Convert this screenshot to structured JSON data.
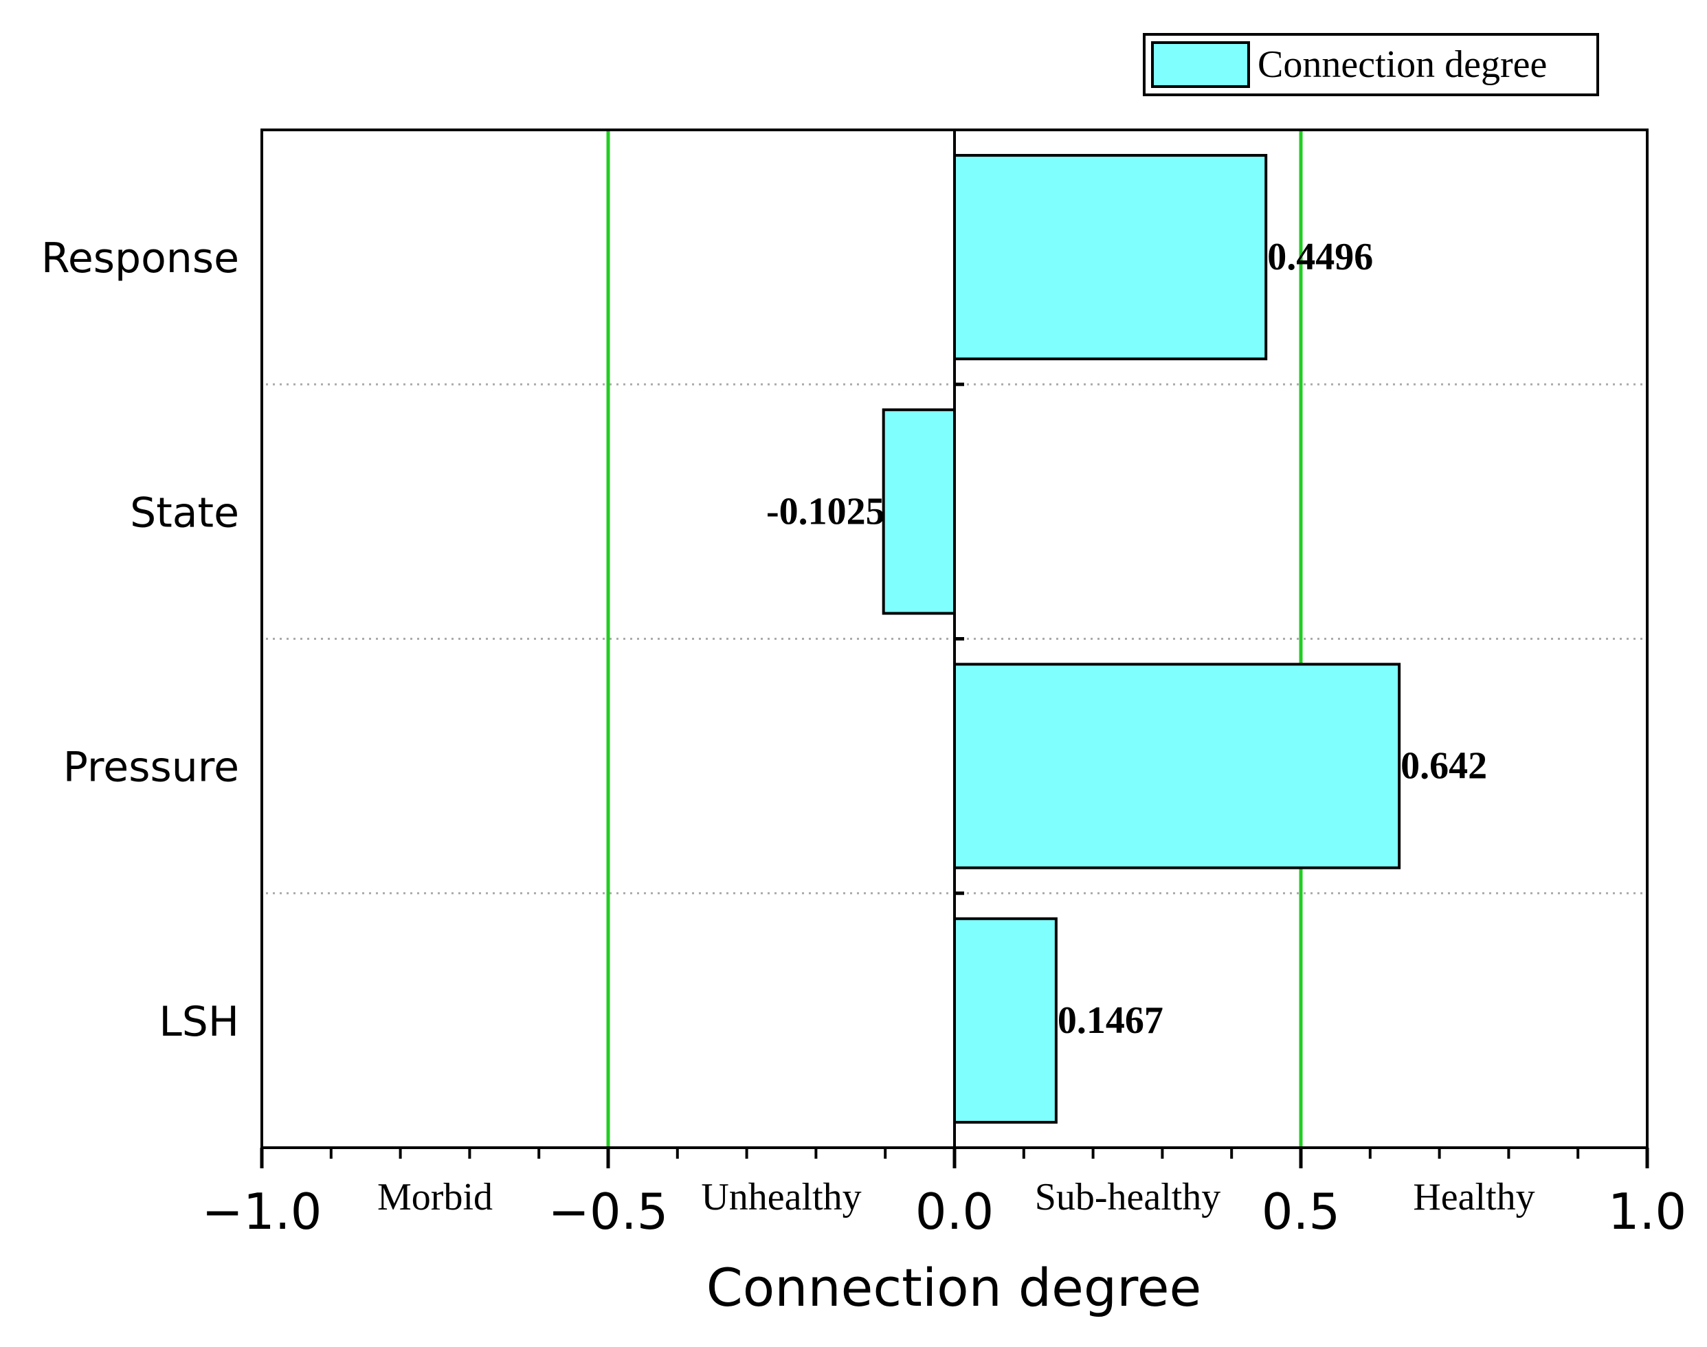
{
  "chart_data": {
    "type": "bar",
    "orientation": "horizontal",
    "title": "",
    "xlabel": "Connection degree",
    "ylabel": "",
    "xlim": [
      -1.0,
      1.0
    ],
    "x_ticks": [
      -1.0,
      -0.5,
      0.0,
      0.5,
      1.0
    ],
    "x_tick_labels": [
      "−1.0",
      "−0.5",
      "0.0",
      "0.5",
      "1.0"
    ],
    "categories": [
      "Response",
      "State",
      "Pressure",
      "LSH"
    ],
    "series": [
      {
        "name": "Connection degree",
        "values": [
          0.4496,
          -0.1025,
          0.642,
          0.1467
        ],
        "value_labels": [
          "0.4496",
          "-0.1025",
          "0.642",
          "0.1467"
        ],
        "color": "#80ffff"
      }
    ],
    "threshold_lines": [
      -0.5,
      0.5
    ],
    "threshold_color": "#22cc22",
    "zones": [
      {
        "label": "Morbid",
        "center": -0.75
      },
      {
        "label": "Unhealthy",
        "center": -0.25
      },
      {
        "label": "Sub-healthy",
        "center": 0.25
      },
      {
        "label": "Healthy",
        "center": 0.75
      }
    ],
    "legend": {
      "label": "Connection degree",
      "position": "top-right"
    },
    "grid": "dotted separators between categories"
  }
}
